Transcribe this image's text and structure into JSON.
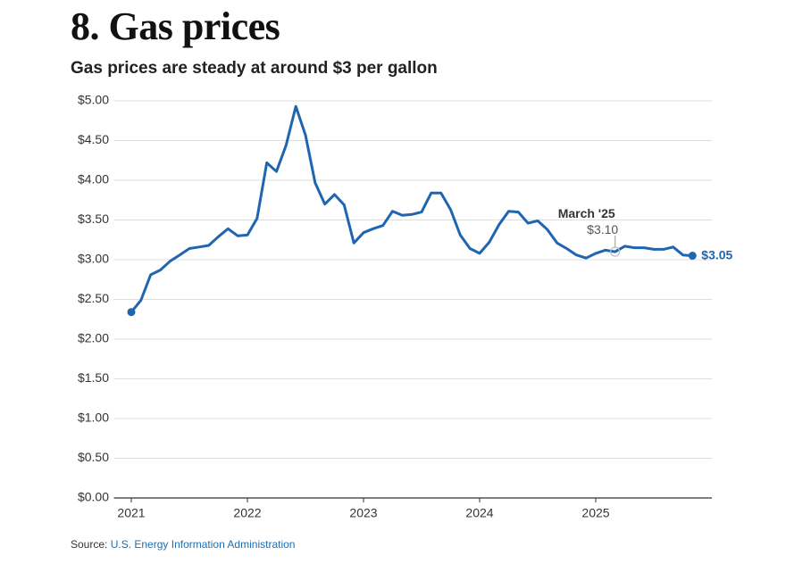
{
  "header": {
    "title": "8. Gas prices"
  },
  "chart_data": {
    "type": "line",
    "title": "Gas prices are steady at around $3 per gallon",
    "x": [
      2021,
      2021.083,
      2021.167,
      2021.25,
      2021.333,
      2021.417,
      2021.5,
      2021.583,
      2021.667,
      2021.75,
      2021.833,
      2021.917,
      2022,
      2022.083,
      2022.167,
      2022.25,
      2022.333,
      2022.417,
      2022.5,
      2022.583,
      2022.667,
      2022.75,
      2022.833,
      2022.917,
      2023,
      2023.083,
      2023.167,
      2023.25,
      2023.333,
      2023.417,
      2023.5,
      2023.583,
      2023.667,
      2023.75,
      2023.833,
      2023.917,
      2024,
      2024.083,
      2024.167,
      2024.25,
      2024.333,
      2024.417,
      2024.5,
      2024.583,
      2024.667,
      2024.75,
      2024.833,
      2024.917,
      2025,
      2025.083,
      2025.167,
      2025.25,
      2025.333,
      2025.417,
      2025.5,
      2025.583,
      2025.667,
      2025.75,
      2025.833
    ],
    "series": [
      {
        "color": "#1f65b0",
        "values": [
          2.34,
          2.49,
          2.81,
          2.87,
          2.98,
          3.06,
          3.14,
          3.16,
          3.18,
          3.29,
          3.39,
          3.3,
          3.31,
          3.52,
          4.22,
          4.11,
          4.44,
          4.93,
          4.57,
          3.97,
          3.7,
          3.82,
          3.69,
          3.21,
          3.34,
          3.39,
          3.43,
          3.61,
          3.56,
          3.57,
          3.6,
          3.84,
          3.84,
          3.63,
          3.31,
          3.14,
          3.08,
          3.22,
          3.44,
          3.61,
          3.6,
          3.46,
          3.49,
          3.38,
          3.21,
          3.14,
          3.06,
          3.02,
          3.08,
          3.12,
          3.1,
          3.17,
          3.15,
          3.15,
          3.13,
          3.13,
          3.16,
          3.06,
          3.05
        ]
      }
    ],
    "end_label": {
      "value": 3.05,
      "label": "$3.05"
    },
    "annotations": [
      {
        "x": 2025.167,
        "y": 3.1,
        "title": "March '25",
        "label": "$3.10"
      }
    ],
    "xlim": [
      2020.85,
      2026
    ],
    "xticks": [
      2021,
      2022,
      2023,
      2024,
      2025
    ],
    "ylim": [
      0,
      5
    ],
    "yticks": [
      {
        "value": 0,
        "label": "$0.00"
      },
      {
        "value": 0.5,
        "label": "$0.50"
      },
      {
        "value": 1,
        "label": "$1.00"
      },
      {
        "value": 1.5,
        "label": "$1.50"
      },
      {
        "value": 2,
        "label": "$2.00"
      },
      {
        "value": 2.5,
        "label": "$2.50"
      },
      {
        "value": 3,
        "label": "$3.00"
      },
      {
        "value": 3.5,
        "label": "$3.50"
      },
      {
        "value": 4,
        "label": "$4.00"
      },
      {
        "value": 4.5,
        "label": "$4.50"
      },
      {
        "value": 5,
        "label": "$5.00"
      }
    ],
    "grid": true
  },
  "source": {
    "label": "Source:",
    "link": "U.S. Energy Information Administration"
  }
}
